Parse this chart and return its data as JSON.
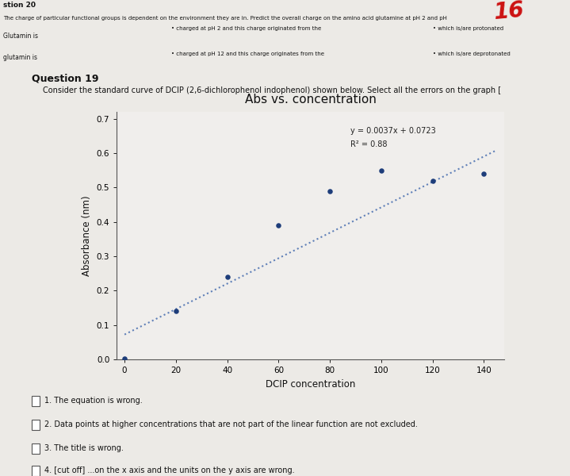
{
  "top_bg_color": "#cbc9c4",
  "bottom_bg_color": "#eceae6",
  "chart_panel_color": "#f7f6f4",
  "chart_inner_color": "#f0eeec",
  "top_section": {
    "question_num": "stion 20",
    "line1": "The charge of particular functional groups is dependent on the environment they are in. Predict the overall charge on the amino acid glutamine at pH 2 and pH",
    "row1_label": "Glutamin is",
    "row2_label": "glutamin is",
    "bullet1": "charged at pH 2 and this charge originated from the",
    "bullet2": "charged at pH 12 and this charge originates from the",
    "right1": "which is/are protonated",
    "right2": "which is/are deprotonated"
  },
  "question19_label": "Question 19",
  "question19_text": "Consider the standard curve of DCIP (2,6-dichlorophenol indophenol) shown below. Select all the errors on the graph [",
  "chart_title": "Abs vs. concentration",
  "xlabel": "DCIP concentration",
  "ylabel": "Absorbance (nm)",
  "equation_text": "y = 0.0037x + 0.0723",
  "r2_text": "R² = 0.88",
  "slope": 0.0037,
  "intercept": 0.0723,
  "data_x": [
    0,
    20,
    40,
    60,
    80,
    100,
    120,
    140
  ],
  "data_y": [
    0.003,
    0.14,
    0.24,
    0.39,
    0.49,
    0.55,
    0.52,
    0.54
  ],
  "dot_color": "#1e3d7a",
  "line_color": "#6080b8",
  "ylim": [
    0,
    0.72
  ],
  "xlim": [
    -3,
    148
  ],
  "yticks": [
    0,
    0.1,
    0.2,
    0.3,
    0.4,
    0.5,
    0.6,
    0.7
  ],
  "xticks": [
    0,
    20,
    40,
    60,
    80,
    100,
    120,
    140
  ],
  "checkbox_items": [
    "1. The equation is wrong.",
    "2. Data points at higher concentrations that are not part of the linear function are not excluded.",
    "3. The title is wrong.",
    "4. [cut off] ...on the x axis and the units on the y axis are wrong."
  ]
}
